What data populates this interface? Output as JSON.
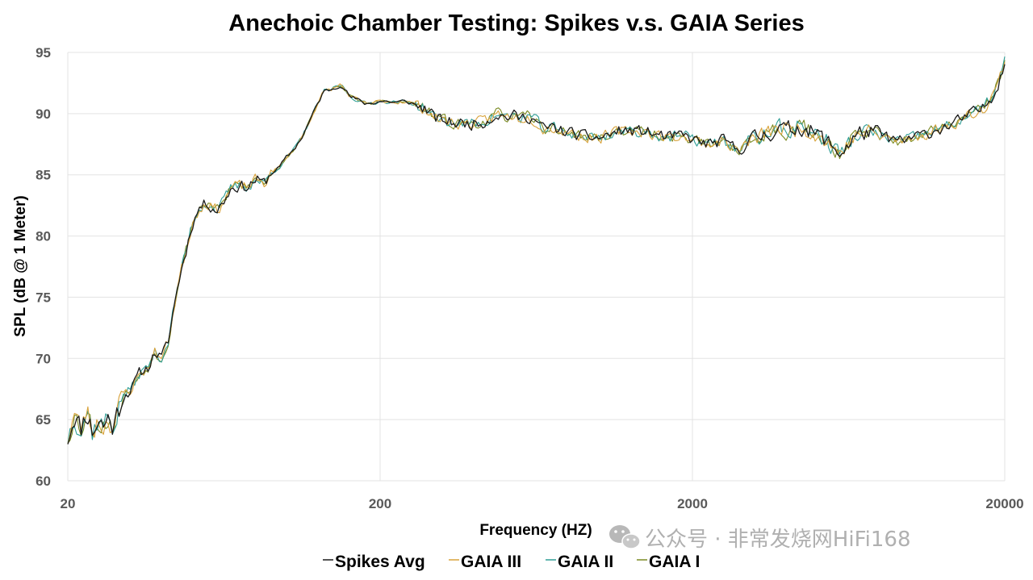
{
  "chart_data": {
    "type": "line",
    "title": "Anechoic Chamber Testing: Spikes v.s. GAIA Series",
    "xlabel": "Frequency (HZ)",
    "ylabel": "SPL (dB @ 1 Meter)",
    "xscale": "log",
    "xlim": [
      20,
      20000
    ],
    "ylim": [
      60,
      95
    ],
    "xticks": [
      20,
      200,
      2000,
      20000
    ],
    "xtick_labels": [
      "20",
      "200",
      "2000",
      "20000"
    ],
    "yticks": [
      60,
      65,
      70,
      75,
      80,
      85,
      90,
      95
    ],
    "ytick_labels": [
      "60",
      "65",
      "70",
      "75",
      "80",
      "85",
      "90",
      "95"
    ],
    "grid": true,
    "legend_position": "bottom",
    "base_curve": {
      "x": [
        20,
        21,
        22,
        23,
        24,
        25,
        26,
        27,
        28,
        30,
        32,
        34,
        36,
        38,
        40,
        42,
        45,
        48,
        50,
        53,
        56,
        60,
        63,
        67,
        70,
        75,
        80,
        85,
        90,
        95,
        100,
        106,
        112,
        118,
        125,
        132,
        140,
        150,
        160,
        170,
        180,
        190,
        200,
        212,
        224,
        236,
        250,
        265,
        280,
        300,
        315,
        335,
        355,
        375,
        400,
        425,
        450,
        475,
        500,
        530,
        560,
        600,
        630,
        670,
        710,
        750,
        800,
        850,
        900,
        950,
        1000,
        1060,
        1120,
        1180,
        1250,
        1320,
        1400,
        1500,
        1600,
        1700,
        1800,
        1900,
        2000,
        2120,
        2240,
        2360,
        2500,
        2650,
        2800,
        3000,
        3150,
        3350,
        3550,
        3750,
        4000,
        4250,
        4500,
        4750,
        5000,
        5300,
        5600,
        6000,
        6300,
        6700,
        7100,
        7500,
        8000,
        8500,
        9000,
        9500,
        10000,
        10600,
        11200,
        11800,
        12500,
        13200,
        14000,
        15000,
        16000,
        17000,
        18000,
        19000,
        20000
      ],
      "y": [
        63.5,
        65.5,
        64.2,
        65.8,
        64.0,
        65.0,
        64.5,
        65.2,
        64.4,
        67.0,
        67.5,
        68.8,
        69.2,
        70.5,
        70.0,
        71.5,
        76.0,
        79.0,
        81.0,
        82.4,
        82.7,
        82.1,
        82.8,
        84.0,
        84.1,
        84.0,
        84.6,
        84.3,
        85.2,
        85.6,
        86.4,
        87.1,
        88.0,
        89.2,
        90.6,
        91.8,
        92.0,
        92.4,
        91.4,
        91.1,
        90.8,
        90.9,
        91.0,
        91.0,
        90.9,
        91.0,
        90.9,
        90.6,
        90.4,
        89.6,
        89.5,
        89.3,
        89.2,
        89.2,
        89.2,
        89.3,
        89.6,
        90.0,
        89.7,
        89.9,
        89.6,
        89.8,
        89.4,
        88.7,
        88.9,
        88.6,
        88.5,
        88.3,
        88.1,
        88.1,
        88.0,
        88.2,
        88.4,
        88.6,
        88.6,
        88.5,
        88.6,
        88.3,
        88.2,
        88.0,
        88.2,
        88.1,
        87.9,
        87.7,
        87.5,
        87.6,
        87.8,
        87.4,
        87.0,
        87.6,
        87.9,
        88.2,
        88.5,
        88.9,
        88.6,
        88.8,
        89.0,
        88.6,
        88.3,
        87.9,
        87.3,
        86.8,
        87.5,
        88.2,
        88.5,
        88.4,
        88.2,
        88.0,
        87.8,
        87.7,
        88.0,
        88.2,
        88.3,
        88.6,
        88.8,
        89.0,
        89.3,
        89.7,
        90.1,
        90.4,
        91.2,
        92.4,
        94.3
      ]
    },
    "series": [
      {
        "name": "Spikes Avg",
        "color": "#1a1a1a",
        "seed": 11,
        "amp": 0.45
      },
      {
        "name": "GAIA III",
        "color": "#d8a23a",
        "seed": 23,
        "amp": 0.42
      },
      {
        "name": "GAIA II",
        "color": "#2f9e96",
        "seed": 37,
        "amp": 0.42
      },
      {
        "name": "GAIA I",
        "color": "#7a8a22",
        "seed": 53,
        "amp": 0.4
      }
    ]
  },
  "watermark": {
    "text": "公众号 · 非常发烧网HiFi168",
    "icon": "wechat-icon"
  }
}
